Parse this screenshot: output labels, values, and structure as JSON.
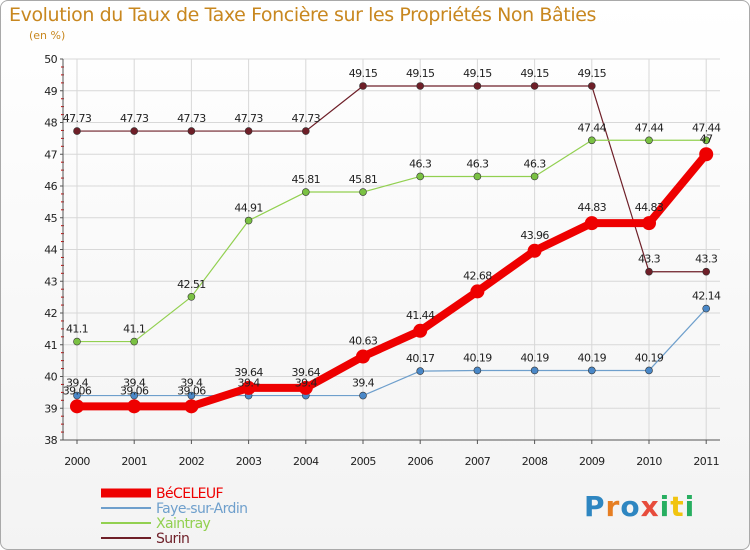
{
  "title": "Evolution du Taux de Taxe Foncière sur les Propriétés Non Bâties",
  "subtitle": "(en %)",
  "logo": [
    "P",
    "r",
    "o",
    "x",
    "i",
    "t",
    "i"
  ],
  "colors": {
    "title": "#c8871f",
    "grid": "#d8d8d8",
    "axis": "#555555",
    "tick_red": "#cc0000"
  },
  "chart_data": {
    "type": "line",
    "title": "Evolution du Taux de Taxe Foncière sur les Propriétés Non Bâties",
    "ylabel": "(en %)",
    "xlabel": "",
    "x": [
      "2000",
      "2001",
      "2002",
      "2003",
      "2004",
      "2005",
      "2006",
      "2007",
      "2008",
      "2009",
      "2010",
      "2011"
    ],
    "ylim": [
      38,
      50
    ],
    "yticks": [
      "38",
      "39",
      "40",
      "41",
      "42",
      "43",
      "44",
      "45",
      "46",
      "47",
      "48",
      "49",
      "50"
    ],
    "grid": true,
    "legend_position": "bottom-left",
    "series": [
      {
        "name": "Surin",
        "color": "#6e1f28",
        "marker": "#6e1f28",
        "width": 1.2,
        "radius": 3.5,
        "values": [
          47.73,
          47.73,
          47.73,
          47.73,
          47.73,
          49.15,
          49.15,
          49.15,
          49.15,
          49.15,
          43.3,
          43.3
        ],
        "labels": [
          "47.73",
          "47.73",
          "47.73",
          "47.73",
          "47.73",
          "49.15",
          "49.15",
          "49.15",
          "49.15",
          "49.15",
          "43.3",
          "43.3"
        ]
      },
      {
        "name": "Xaintray",
        "color": "#92d050",
        "marker": "#7ac143",
        "width": 1.2,
        "radius": 3.5,
        "values": [
          41.1,
          41.1,
          42.51,
          44.91,
          45.81,
          45.81,
          46.3,
          46.3,
          46.3,
          47.44,
          47.44,
          47.44
        ],
        "labels": [
          "41.1",
          "41.1",
          "42.51",
          "44.91",
          "45.81",
          "45.81",
          "46.3",
          "46.3",
          "46.3",
          "47.44",
          "47.44",
          "47.44"
        ]
      },
      {
        "name": "Faye-sur-Ardin",
        "color": "#6e9fcc",
        "marker": "#4a88c8",
        "width": 1.2,
        "radius": 3.5,
        "values": [
          39.4,
          39.4,
          39.4,
          39.4,
          39.4,
          39.4,
          40.17,
          40.19,
          40.19,
          40.19,
          40.19,
          42.14
        ],
        "labels": [
          "39.4",
          "39.4",
          "39.4",
          "39.4",
          "39.4",
          "39.4",
          "40.17",
          "40.19",
          "40.19",
          "40.19",
          "40.19",
          "42.14"
        ]
      },
      {
        "name": "BéCELEUF",
        "color": "#ee0000",
        "marker": "#ee0000",
        "width": 8,
        "radius": 7,
        "values": [
          39.06,
          39.06,
          39.06,
          39.64,
          39.64,
          40.63,
          41.44,
          42.68,
          43.96,
          44.83,
          44.83,
          47
        ],
        "labels": [
          "39.06",
          "39.06",
          "39.06",
          "39.64",
          "39.64",
          "40.63",
          "41.44",
          "42.68",
          "43.96",
          "44.83",
          "44.83",
          "47"
        ]
      }
    ],
    "legend": [
      "BéCELEUF",
      "Faye-sur-Ardin",
      "Xaintray",
      "Surin"
    ]
  }
}
